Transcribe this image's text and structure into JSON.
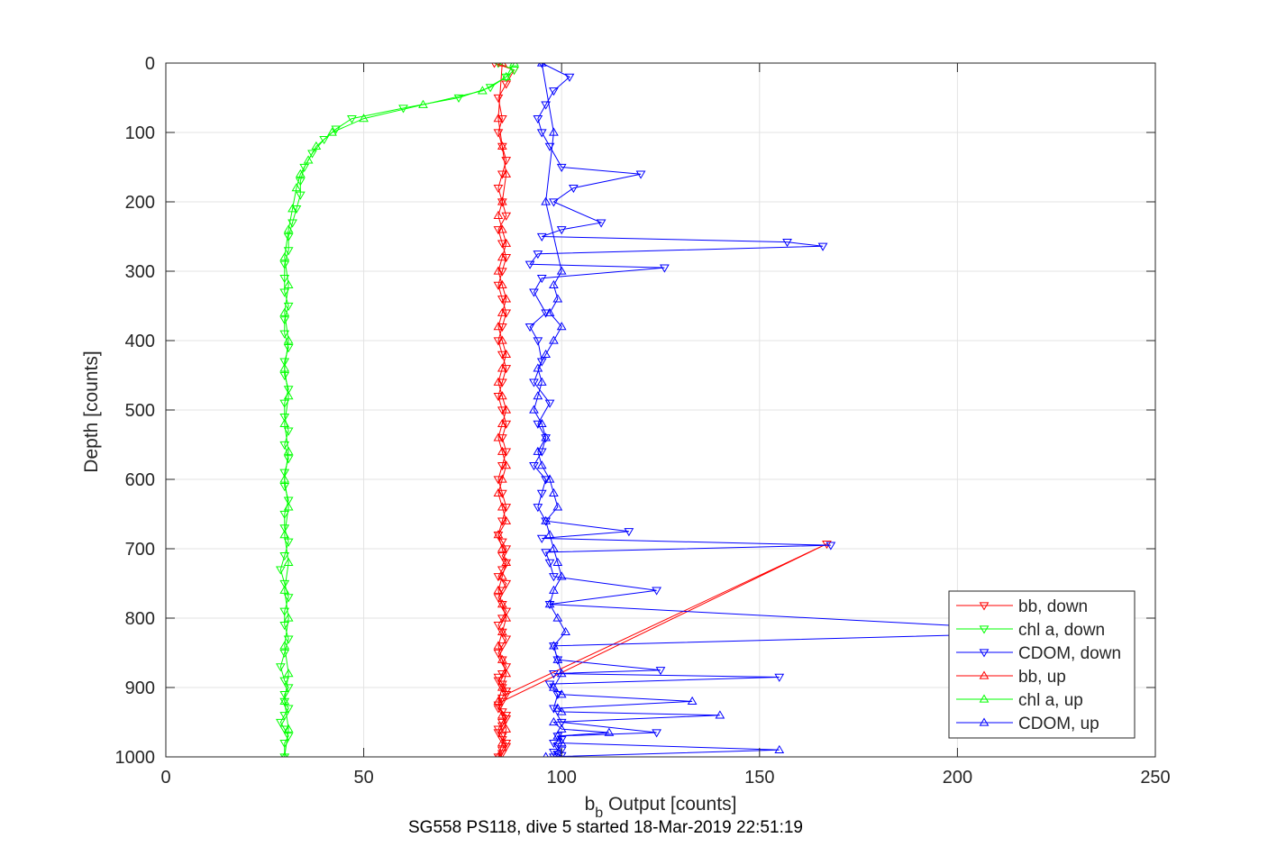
{
  "chart_data": {
    "type": "line",
    "title": "SG558 PS118, dive 5 started 18-Mar-2019 22:51:19",
    "xlabel_main": "b",
    "xlabel_sub": "b",
    "xlabel_rest": " Output [counts]",
    "ylabel": "Depth [counts]",
    "xlim": [
      0,
      250
    ],
    "ylim": [
      0,
      1000
    ],
    "y_reversed": true,
    "grid": true,
    "x_ticks": [
      0,
      50,
      100,
      150,
      200,
      250
    ],
    "y_ticks": [
      0,
      100,
      200,
      300,
      400,
      500,
      600,
      700,
      800,
      900,
      1000
    ],
    "legend_position": "bottom-right",
    "series": [
      {
        "name": "bb, down",
        "color": "#ff0000",
        "marker": "triangle-down",
        "x": [
          83,
          88,
          86,
          84,
          85,
          84,
          85,
          86,
          85,
          84,
          85,
          86,
          84,
          85,
          86,
          85,
          84,
          85,
          86,
          85,
          84,
          85,
          86,
          85,
          84,
          85,
          86,
          85,
          86,
          85,
          84,
          85,
          86,
          85,
          84,
          85,
          86,
          85,
          86,
          85,
          84,
          86,
          85,
          84,
          85,
          86,
          85,
          84,
          85,
          86,
          85,
          84,
          85,
          86,
          85,
          84,
          85,
          86,
          167,
          85,
          84,
          86,
          85,
          84,
          85,
          86,
          85,
          84,
          85,
          86,
          85,
          84,
          85,
          86,
          85,
          84,
          85,
          86,
          85,
          84
        ],
        "y": [
          0,
          10,
          30,
          50,
          80,
          100,
          120,
          140,
          160,
          180,
          200,
          220,
          240,
          260,
          280,
          300,
          320,
          340,
          360,
          380,
          400,
          420,
          440,
          460,
          480,
          500,
          520,
          540,
          560,
          580,
          600,
          620,
          640,
          660,
          680,
          690,
          700,
          710,
          720,
          730,
          740,
          750,
          760,
          770,
          780,
          790,
          800,
          810,
          820,
          830,
          840,
          850,
          860,
          870,
          880,
          890,
          900,
          910,
          693,
          920,
          930,
          940,
          950,
          960,
          970,
          980,
          990,
          1000,
          995,
          985,
          975,
          965,
          955,
          945,
          935,
          925,
          915,
          905,
          895,
          885
        ]
      },
      {
        "name": "chl a, down",
        "color": "#00ff00",
        "marker": "triangle-down",
        "x": [
          84,
          88,
          86,
          82,
          74,
          60,
          47,
          43,
          40,
          37,
          35,
          34,
          34,
          33,
          32,
          31,
          31,
          30,
          30,
          30,
          31,
          30,
          30,
          31,
          30,
          30,
          31,
          30,
          30,
          31,
          30,
          31,
          30,
          30,
          31,
          30,
          30,
          31,
          30,
          29,
          30,
          31,
          30,
          30,
          31,
          30,
          29,
          30,
          31,
          30,
          30,
          31,
          30,
          29,
          30,
          31,
          30,
          30
        ],
        "y": [
          0,
          10,
          20,
          35,
          50,
          65,
          80,
          95,
          110,
          130,
          150,
          170,
          190,
          210,
          230,
          250,
          270,
          290,
          310,
          330,
          350,
          370,
          390,
          410,
          430,
          450,
          470,
          490,
          510,
          530,
          550,
          570,
          590,
          610,
          630,
          650,
          670,
          690,
          710,
          730,
          750,
          770,
          790,
          810,
          830,
          850,
          870,
          890,
          900,
          910,
          920,
          930,
          940,
          950,
          960,
          970,
          980,
          1000
        ]
      },
      {
        "name": "CDOM, down",
        "color": "#0000ff",
        "marker": "triangle-down",
        "x": [
          95,
          102,
          98,
          96,
          94,
          95,
          97,
          100,
          120,
          103,
          98,
          110,
          100,
          95,
          157,
          166,
          94,
          92,
          126,
          95,
          93,
          96,
          92,
          94,
          95,
          93,
          97,
          94,
          96,
          95,
          93,
          96,
          95,
          94,
          96,
          117,
          95,
          168,
          96,
          97,
          98,
          124,
          97,
          230,
          98,
          99,
          125,
          98,
          155,
          97,
          99,
          98,
          100,
          124,
          99,
          100,
          98,
          99,
          100,
          98,
          99,
          100,
          98
        ],
        "y": [
          0,
          20,
          40,
          60,
          80,
          100,
          120,
          150,
          160,
          180,
          200,
          230,
          240,
          250,
          258,
          264,
          275,
          290,
          295,
          310,
          330,
          360,
          380,
          400,
          430,
          460,
          490,
          520,
          540,
          560,
          580,
          600,
          620,
          640,
          660,
          675,
          685,
          695,
          705,
          720,
          740,
          760,
          780,
          820,
          840,
          860,
          875,
          880,
          885,
          895,
          910,
          930,
          950,
          965,
          970,
          975,
          980,
          985,
          990,
          993,
          996,
          998,
          1000
        ]
      },
      {
        "name": "bb, up",
        "color": "#ff0000",
        "marker": "triangle-up",
        "x": [
          84,
          85,
          86,
          85,
          84,
          85,
          86,
          85,
          84,
          85,
          86,
          85,
          84,
          85,
          86,
          85,
          84,
          86,
          85,
          84,
          85,
          86,
          85,
          84,
          85,
          86,
          85,
          84,
          85,
          86,
          85,
          84,
          85,
          86,
          85,
          84,
          85,
          86,
          85,
          84,
          85,
          86,
          85,
          84,
          85
        ],
        "y": [
          1000,
          980,
          960,
          940,
          920,
          900,
          880,
          860,
          840,
          820,
          800,
          780,
          760,
          740,
          720,
          700,
          680,
          660,
          640,
          620,
          600,
          580,
          560,
          540,
          520,
          500,
          480,
          460,
          440,
          420,
          400,
          380,
          360,
          340,
          320,
          300,
          280,
          260,
          240,
          220,
          200,
          160,
          120,
          80,
          0
        ]
      },
      {
        "name": "chl a, up",
        "color": "#00ff00",
        "marker": "triangle-up",
        "x": [
          30,
          31,
          30,
          31,
          30,
          31,
          30,
          31,
          30,
          31,
          30,
          31,
          30,
          31,
          30,
          31,
          30,
          31,
          30,
          31,
          32,
          33,
          34,
          36,
          38,
          42,
          50,
          65,
          80,
          86,
          88
        ],
        "y": [
          1000,
          960,
          920,
          880,
          840,
          800,
          760,
          720,
          680,
          640,
          600,
          560,
          520,
          480,
          440,
          400,
          360,
          320,
          280,
          240,
          210,
          180,
          160,
          140,
          120,
          100,
          80,
          60,
          40,
          20,
          0
        ]
      },
      {
        "name": "CDOM, up",
        "color": "#0000ff",
        "marker": "triangle-up",
        "x": [
          96,
          155,
          100,
          99,
          112,
          100,
          98,
          140,
          100,
          99,
          133,
          100,
          98,
          100,
          99,
          98,
          101,
          99,
          97,
          98,
          100,
          99,
          98,
          97,
          96,
          99,
          98,
          97,
          95,
          94,
          96,
          95,
          93,
          94,
          95,
          94,
          96,
          98,
          100,
          97,
          99,
          98,
          100,
          96,
          98,
          95
        ],
        "y": [
          1000,
          990,
          980,
          970,
          965,
          960,
          950,
          940,
          935,
          930,
          920,
          910,
          900,
          880,
          860,
          840,
          820,
          800,
          780,
          760,
          740,
          720,
          700,
          680,
          660,
          640,
          620,
          600,
          580,
          560,
          540,
          520,
          500,
          480,
          460,
          440,
          420,
          400,
          380,
          360,
          340,
          320,
          300,
          200,
          100,
          0
        ]
      }
    ]
  }
}
